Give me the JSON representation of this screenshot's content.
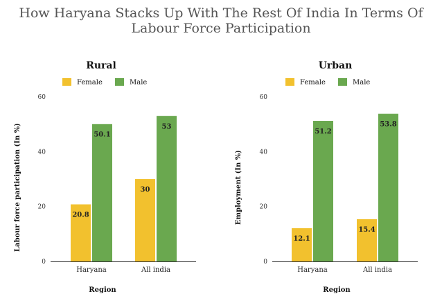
{
  "title_line1": "How Haryana Stacks Up With The Rest Of India In Terms Of",
  "title_line2": "Labour Force Participation",
  "colors": {
    "female": "#f2c12e",
    "male": "#6aa84f"
  },
  "chart_data": [
    {
      "type": "bar",
      "title": "Rural",
      "categories": [
        "Haryana",
        "All india"
      ],
      "series": [
        {
          "name": "Female",
          "values": [
            20.8,
            30
          ]
        },
        {
          "name": "Male",
          "values": [
            50.1,
            53
          ]
        }
      ],
      "xlabel": "Region",
      "ylabel": "Labour force participation (In %)",
      "ylim": [
        0,
        60
      ],
      "yticks": [
        0,
        20,
        40,
        60
      ],
      "data_labels": [
        [
          "20.8",
          "30"
        ],
        [
          "50.1",
          "53"
        ]
      ],
      "legend": "top",
      "grid": false
    },
    {
      "type": "bar",
      "title": "Urban",
      "categories": [
        "Haryana",
        "All india"
      ],
      "series": [
        {
          "name": "Female",
          "values": [
            12.1,
            15.4
          ]
        },
        {
          "name": "Male",
          "values": [
            51.2,
            53.8
          ]
        }
      ],
      "xlabel": "Region",
      "ylabel": "Employment (In %)",
      "ylim": [
        0,
        60
      ],
      "yticks": [
        0,
        20,
        40,
        60
      ],
      "data_labels": [
        [
          "12.1",
          "15.4"
        ],
        [
          "51.2",
          "53.8"
        ]
      ],
      "legend": "top",
      "grid": false
    }
  ]
}
